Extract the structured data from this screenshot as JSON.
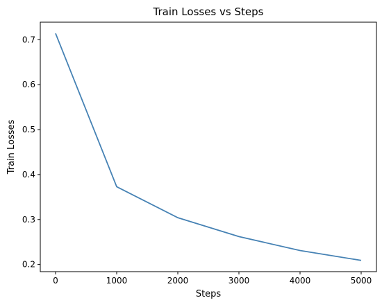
{
  "chart_data": {
    "type": "line",
    "title": "Train Losses vs Steps",
    "xlabel": "Steps",
    "ylabel": "Train Losses",
    "x": [
      0,
      1000,
      2000,
      3000,
      4000,
      5000
    ],
    "series": [
      {
        "values": [
          0.714,
          0.373,
          0.304,
          0.262,
          0.231,
          0.209
        ],
        "color": "#4682b4"
      }
    ],
    "xlim": [
      -250,
      5250
    ],
    "ylim": [
      0.184,
      0.739
    ],
    "xticks": [
      0,
      1000,
      2000,
      3000,
      4000,
      5000
    ],
    "yticks": [
      0.2,
      0.3,
      0.4,
      0.5,
      0.6,
      0.7
    ],
    "xtick_labels": [
      "0",
      "1000",
      "2000",
      "3000",
      "4000",
      "5000"
    ],
    "ytick_labels": [
      "0.2",
      "0.3",
      "0.4",
      "0.5",
      "0.6",
      "0.7"
    ],
    "grid": false,
    "legend": false
  }
}
